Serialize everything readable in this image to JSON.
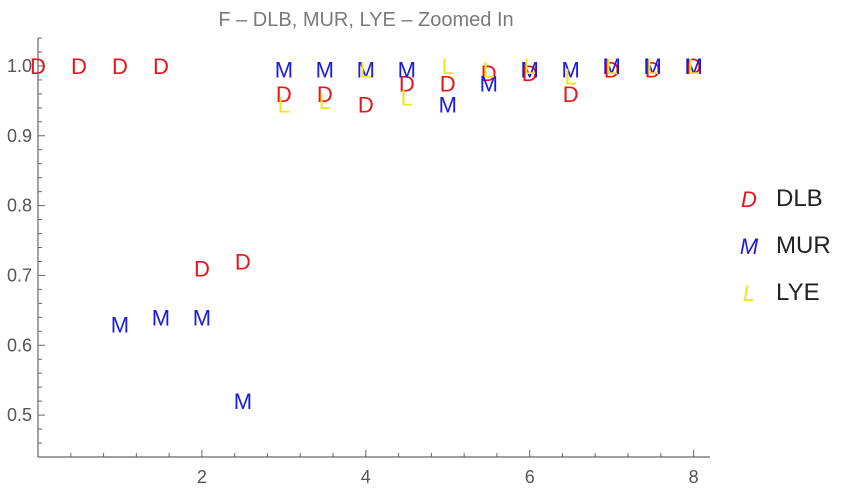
{
  "chart_data": {
    "type": "scatter",
    "title": "F – DLB, MUR, LYE – Zoomed In",
    "xlabel": "",
    "ylabel": "",
    "xlim": [
      0,
      8.2
    ],
    "ylim": [
      0.44,
      1.04
    ],
    "xticks": [
      2,
      4,
      6,
      8
    ],
    "yticks": [
      0.5,
      0.6,
      0.7,
      0.8,
      0.9,
      1.0
    ],
    "yticklabels": [
      "0.5",
      "0.6",
      "0.7",
      "0.8",
      "0.9",
      "1.0"
    ],
    "grid": false,
    "legend_position": "right",
    "series": [
      {
        "name": "DLB",
        "marker": "D",
        "color": "#e8141b",
        "x": [
          0,
          0.5,
          1,
          1.5,
          2,
          2.5,
          3,
          3.5,
          4,
          4.5,
          5,
          5.5,
          6,
          6.5,
          7,
          7.5,
          8
        ],
        "y": [
          1.0,
          1.0,
          1.0,
          1.0,
          0.71,
          0.72,
          0.96,
          0.96,
          0.945,
          0.975,
          0.975,
          0.99,
          0.99,
          0.96,
          0.995,
          0.995,
          1.0
        ]
      },
      {
        "name": "MUR",
        "marker": "M",
        "color": "#1a1ae0",
        "x": [
          1,
          1.5,
          2,
          2.5,
          3,
          3.5,
          4,
          4.5,
          5,
          5.5,
          6,
          6.5,
          7,
          7.5,
          8
        ],
        "y": [
          0.63,
          0.64,
          0.64,
          0.52,
          0.995,
          0.995,
          0.995,
          0.995,
          0.945,
          0.975,
          0.995,
          0.995,
          1.0,
          1.0,
          1.0
        ]
      },
      {
        "name": "LYE",
        "marker": "L",
        "color": "#f2e51a",
        "x": [
          3,
          3.5,
          4,
          4.5,
          5,
          5.5,
          6,
          6.5,
          7,
          7.5,
          8
        ],
        "y": [
          0.945,
          0.95,
          0.995,
          0.955,
          1.0,
          0.995,
          1.0,
          0.985,
          1.0,
          1.0,
          1.0
        ]
      }
    ]
  }
}
